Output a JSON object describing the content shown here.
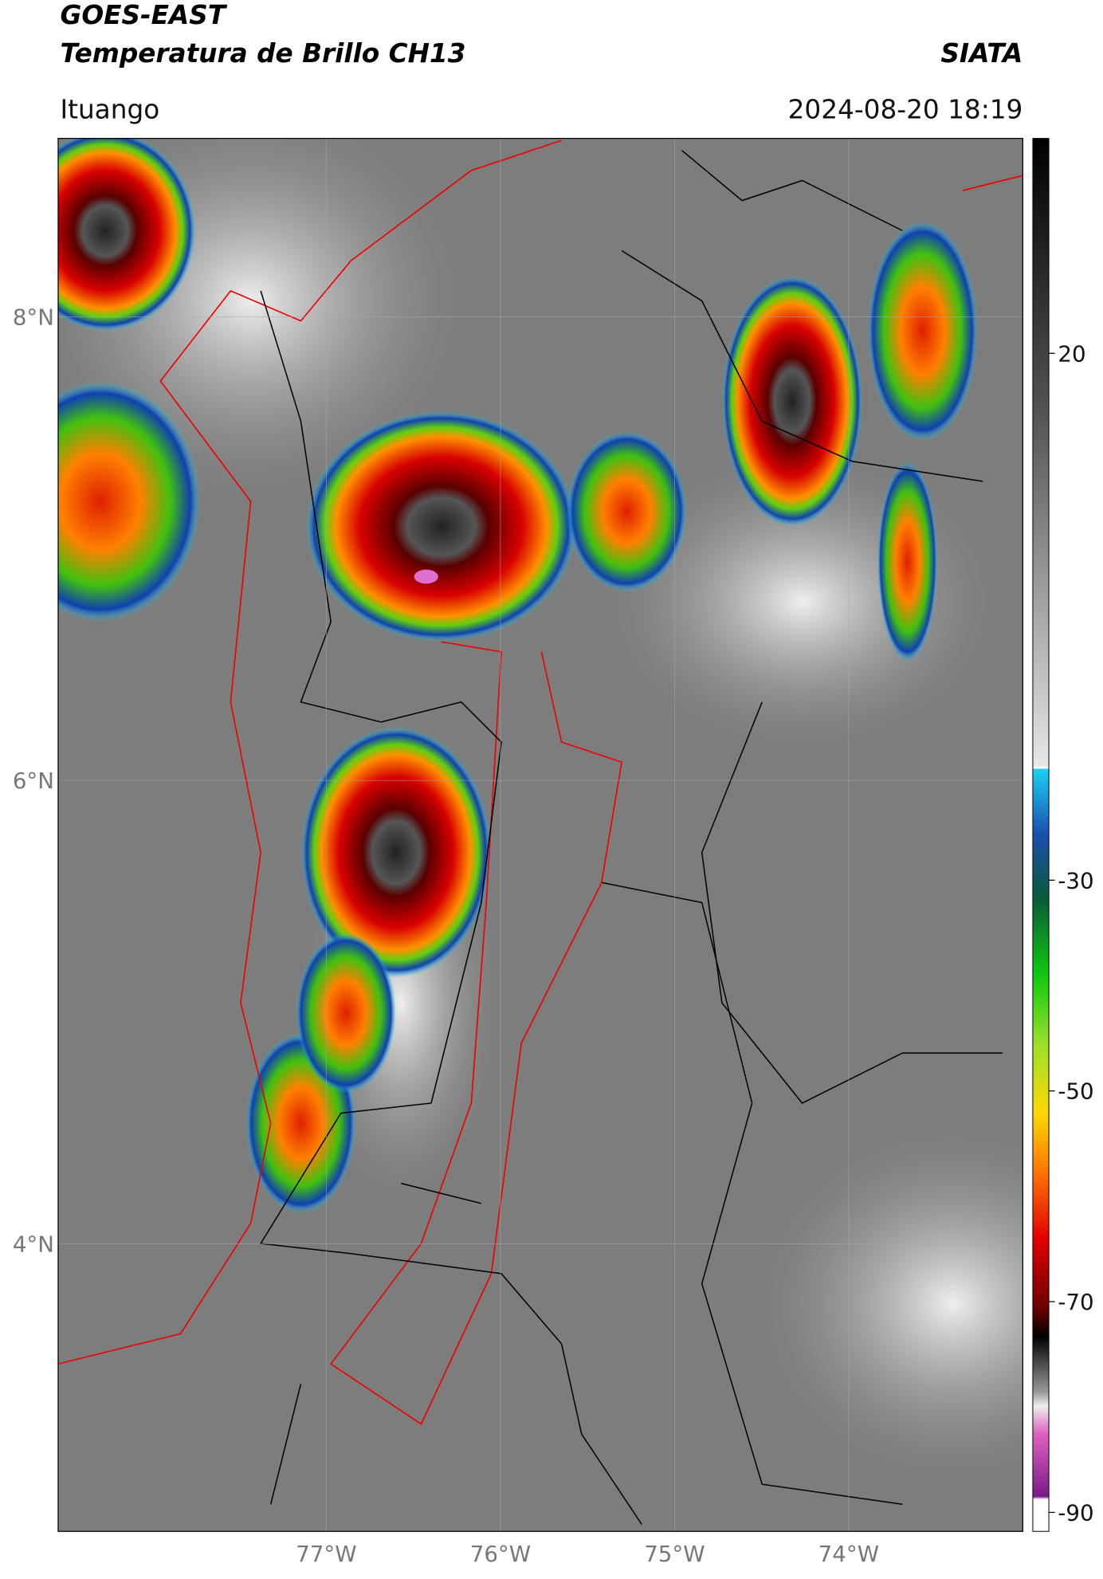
{
  "header": {
    "title_line1": "GOES-EAST",
    "title_line2": "Temperatura de Brillo CH13",
    "source": "SIATA",
    "location": "Ituango",
    "datetime": "2024-08-20 18:19"
  },
  "map": {
    "lat_lim": [
      2.76,
      8.77
    ],
    "lon_lim": [
      -78.54,
      -73.0
    ],
    "lat_ticks": [
      {
        "value": 8,
        "label": "8°N"
      },
      {
        "value": 6,
        "label": "6°N"
      },
      {
        "value": 4,
        "label": "4°N"
      }
    ],
    "lon_ticks": [
      {
        "value": -77,
        "label": "77°W"
      },
      {
        "value": -76,
        "label": "76°W"
      },
      {
        "value": -75,
        "label": "75°W"
      },
      {
        "value": -74,
        "label": "74°W"
      }
    ]
  },
  "colorbar": {
    "lim": [
      -91.8,
      40.4
    ],
    "ticks": [
      20,
      -30,
      -50,
      -70,
      -90
    ]
  }
}
